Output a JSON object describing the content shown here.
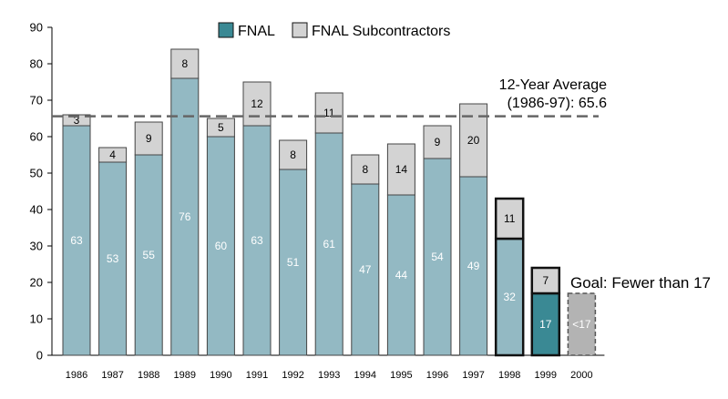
{
  "chart_data": {
    "type": "bar",
    "stacked": true,
    "categories": [
      "1986",
      "1987",
      "1988",
      "1989",
      "1990",
      "1991",
      "1992",
      "1993",
      "1994",
      "1995",
      "1996",
      "1997",
      "1998",
      "1999",
      "2000"
    ],
    "series": [
      {
        "name": "FNAL",
        "values": [
          63,
          53,
          55,
          76,
          60,
          63,
          51,
          61,
          47,
          44,
          54,
          49,
          32,
          17,
          null
        ],
        "labels": [
          "63",
          "53",
          "55",
          "76",
          "60",
          "63",
          "51",
          "61",
          "47",
          "44",
          "54",
          "49",
          "32",
          "17",
          ""
        ]
      },
      {
        "name": "FNAL Subcontractors",
        "values": [
          3,
          4,
          9,
          8,
          5,
          12,
          8,
          11,
          8,
          14,
          9,
          20,
          11,
          7,
          null
        ],
        "labels": [
          "3",
          "4",
          "9",
          "8",
          "5",
          "12",
          "8",
          "11",
          "8",
          "14",
          "9",
          "20",
          "11",
          "7",
          ""
        ]
      }
    ],
    "goal": {
      "category": "2000",
      "value": 17,
      "bar_label": "<17",
      "text": "Goal: Fewer than 17"
    },
    "average": {
      "value": 65.6,
      "label_line1": "12-Year Average",
      "label_line2": "(1986-97): 65.6"
    },
    "ylim": [
      0,
      90
    ],
    "yticks": [
      0,
      10,
      20,
      30,
      40,
      50,
      60,
      70,
      80,
      90
    ],
    "legend": {
      "position": "top-center",
      "items": [
        "FNAL",
        "FNAL Subcontractors"
      ]
    },
    "colors": {
      "fnal": "#93b9c3",
      "fnal_highlight": "#3a8994",
      "subcontractors": "#d3d3d3",
      "goal": "#b3b3b3",
      "average_line": "#666666",
      "axis": "#000000"
    },
    "grid": false
  }
}
